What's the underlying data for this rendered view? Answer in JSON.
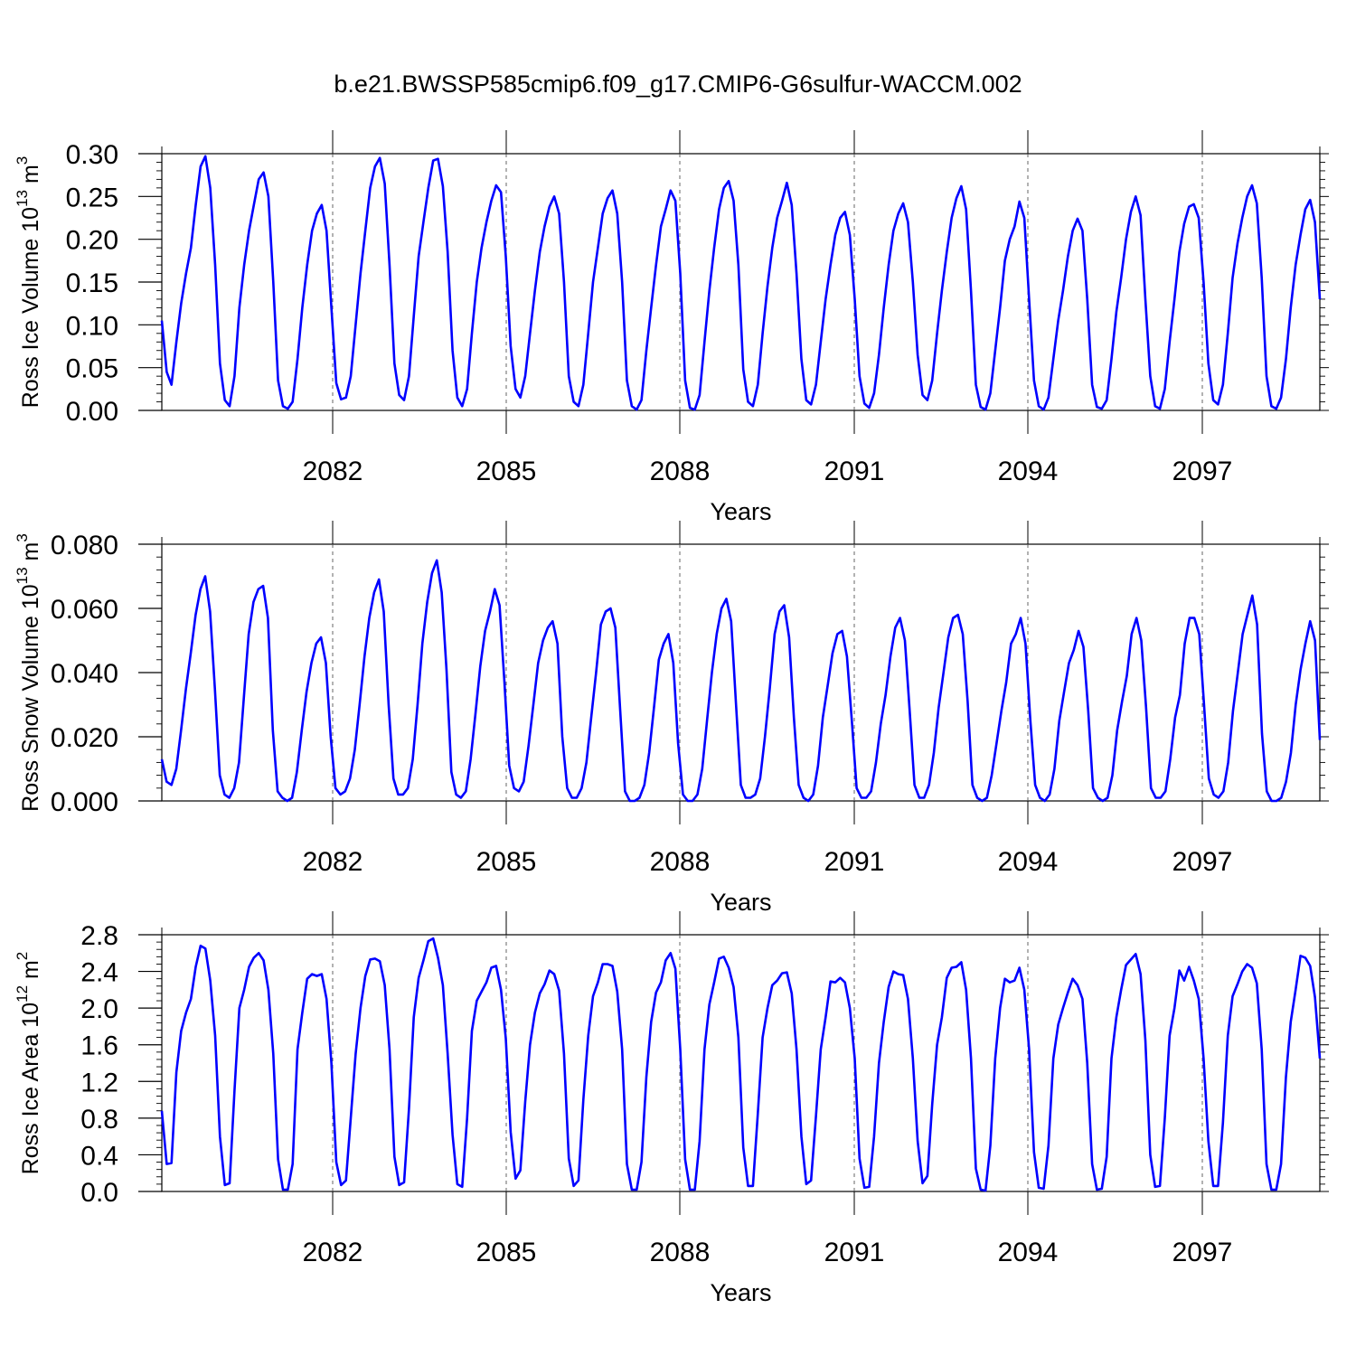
{
  "title": "b.e21.BWSSP585cmip6.f09_g17.CMIP6-G6sulfur-WACCM.002",
  "line_color": "#0000ff",
  "chart_data": [
    {
      "type": "line",
      "xlabel": "Years",
      "ylabel": "Ross Ice Volume 10",
      "ylabel_exp": "13",
      "ylabel_unit": " m",
      "ylabel_unit_exp": "3",
      "x_start": 2079,
      "x_end": 2099,
      "xticks": [
        "2082",
        "2085",
        "2088",
        "2091",
        "2094",
        "2097"
      ],
      "yticks": [
        "0.00",
        "0.05",
        "0.10",
        "0.15",
        "0.20",
        "0.25",
        "0.30"
      ],
      "ylim": [
        0,
        0.3
      ],
      "series": [
        {
          "values": [
            0.105,
            0.045,
            0.03,
            0.08,
            0.125,
            0.16,
            0.19,
            0.24,
            0.285,
            0.297,
            0.26,
            0.17,
            0.055,
            0.012,
            0.005,
            0.04,
            0.12,
            0.17,
            0.21,
            0.24,
            0.27,
            0.278,
            0.25,
            0.15,
            0.035,
            0.005,
            0.002,
            0.01,
            0.06,
            0.12,
            0.17,
            0.21,
            0.23,
            0.24,
            0.21,
            0.12,
            0.032,
            0.013,
            0.015,
            0.04,
            0.1,
            0.16,
            0.21,
            0.26,
            0.285,
            0.295,
            0.265,
            0.17,
            0.055,
            0.018,
            0.012,
            0.04,
            0.11,
            0.18,
            0.22,
            0.26,
            0.292,
            0.294,
            0.262,
            0.185,
            0.07,
            0.015,
            0.005,
            0.025,
            0.09,
            0.15,
            0.19,
            0.22,
            0.245,
            0.263,
            0.255,
            0.18,
            0.075,
            0.025,
            0.015,
            0.04,
            0.09,
            0.14,
            0.185,
            0.215,
            0.238,
            0.25,
            0.23,
            0.15,
            0.04,
            0.01,
            0.005,
            0.03,
            0.09,
            0.15,
            0.19,
            0.23,
            0.248,
            0.257,
            0.23,
            0.15,
            0.035,
            0.005,
            0.001,
            0.012,
            0.07,
            0.12,
            0.17,
            0.215,
            0.235,
            0.257,
            0.245,
            0.16,
            0.035,
            0.003,
            0.001,
            0.018,
            0.08,
            0.14,
            0.19,
            0.235,
            0.26,
            0.268,
            0.245,
            0.17,
            0.048,
            0.01,
            0.005,
            0.03,
            0.09,
            0.145,
            0.19,
            0.225,
            0.245,
            0.266,
            0.24,
            0.16,
            0.06,
            0.012,
            0.007,
            0.03,
            0.08,
            0.13,
            0.17,
            0.205,
            0.225,
            0.232,
            0.205,
            0.13,
            0.04,
            0.008,
            0.003,
            0.02,
            0.065,
            0.12,
            0.17,
            0.21,
            0.23,
            0.242,
            0.22,
            0.15,
            0.065,
            0.018,
            0.012,
            0.035,
            0.09,
            0.14,
            0.185,
            0.225,
            0.248,
            0.262,
            0.235,
            0.14,
            0.03,
            0.004,
            0.001,
            0.02,
            0.07,
            0.12,
            0.175,
            0.2,
            0.215,
            0.244,
            0.225,
            0.13,
            0.035,
            0.005,
            0.001,
            0.015,
            0.06,
            0.105,
            0.14,
            0.18,
            0.21,
            0.224,
            0.21,
            0.13,
            0.03,
            0.004,
            0.002,
            0.012,
            0.06,
            0.115,
            0.155,
            0.2,
            0.232,
            0.25,
            0.228,
            0.13,
            0.04,
            0.005,
            0.002,
            0.025,
            0.08,
            0.13,
            0.185,
            0.218,
            0.238,
            0.241,
            0.225,
            0.15,
            0.055,
            0.012,
            0.007,
            0.03,
            0.09,
            0.155,
            0.195,
            0.225,
            0.25,
            0.263,
            0.242,
            0.155,
            0.04,
            0.005,
            0.002,
            0.015,
            0.06,
            0.12,
            0.17,
            0.205,
            0.235,
            0.246,
            0.22,
            0.13
          ]
        }
      ]
    },
    {
      "type": "line",
      "xlabel": "Years",
      "ylabel": "Ross Snow Volume 10",
      "ylabel_exp": "13",
      "ylabel_unit": " m",
      "ylabel_unit_exp": "3",
      "x_start": 2079,
      "x_end": 2099,
      "xticks": [
        "2082",
        "2085",
        "2088",
        "2091",
        "2094",
        "2097"
      ],
      "yticks": [
        "0.000",
        "0.020",
        "0.040",
        "0.060",
        "0.080"
      ],
      "ylim": [
        0,
        0.08
      ],
      "series": [
        {
          "values": [
            0.013,
            0.006,
            0.005,
            0.01,
            0.022,
            0.035,
            0.046,
            0.058,
            0.066,
            0.07,
            0.059,
            0.035,
            0.008,
            0.002,
            0.001,
            0.004,
            0.012,
            0.032,
            0.052,
            0.062,
            0.066,
            0.067,
            0.057,
            0.022,
            0.003,
            0.001,
            0.0,
            0.001,
            0.009,
            0.022,
            0.034,
            0.043,
            0.049,
            0.051,
            0.043,
            0.02,
            0.004,
            0.002,
            0.003,
            0.007,
            0.016,
            0.03,
            0.045,
            0.057,
            0.065,
            0.069,
            0.059,
            0.03,
            0.007,
            0.002,
            0.002,
            0.004,
            0.013,
            0.03,
            0.049,
            0.062,
            0.071,
            0.075,
            0.065,
            0.041,
            0.009,
            0.002,
            0.001,
            0.003,
            0.013,
            0.027,
            0.042,
            0.053,
            0.059,
            0.066,
            0.061,
            0.037,
            0.011,
            0.004,
            0.003,
            0.006,
            0.017,
            0.03,
            0.043,
            0.05,
            0.054,
            0.056,
            0.049,
            0.02,
            0.004,
            0.001,
            0.001,
            0.004,
            0.012,
            0.026,
            0.04,
            0.055,
            0.059,
            0.06,
            0.054,
            0.028,
            0.003,
            0.0,
            0.0,
            0.001,
            0.005,
            0.015,
            0.029,
            0.044,
            0.049,
            0.052,
            0.043,
            0.018,
            0.002,
            0.0,
            0.0,
            0.002,
            0.01,
            0.025,
            0.04,
            0.052,
            0.06,
            0.063,
            0.056,
            0.03,
            0.005,
            0.001,
            0.001,
            0.002,
            0.007,
            0.02,
            0.035,
            0.052,
            0.059,
            0.061,
            0.051,
            0.026,
            0.005,
            0.001,
            0.0,
            0.002,
            0.011,
            0.026,
            0.036,
            0.046,
            0.052,
            0.053,
            0.045,
            0.025,
            0.004,
            0.001,
            0.001,
            0.003,
            0.012,
            0.024,
            0.033,
            0.045,
            0.054,
            0.057,
            0.05,
            0.028,
            0.005,
            0.001,
            0.001,
            0.005,
            0.015,
            0.029,
            0.04,
            0.051,
            0.057,
            0.058,
            0.052,
            0.031,
            0.005,
            0.001,
            0.0,
            0.001,
            0.008,
            0.018,
            0.028,
            0.037,
            0.049,
            0.052,
            0.057,
            0.049,
            0.025,
            0.005,
            0.001,
            0.0,
            0.002,
            0.01,
            0.025,
            0.034,
            0.043,
            0.047,
            0.053,
            0.048,
            0.028,
            0.004,
            0.001,
            0.0,
            0.001,
            0.008,
            0.022,
            0.031,
            0.039,
            0.052,
            0.057,
            0.05,
            0.029,
            0.004,
            0.001,
            0.001,
            0.003,
            0.013,
            0.026,
            0.033,
            0.049,
            0.057,
            0.057,
            0.052,
            0.03,
            0.007,
            0.002,
            0.001,
            0.003,
            0.012,
            0.028,
            0.04,
            0.052,
            0.058,
            0.064,
            0.055,
            0.021,
            0.003,
            0.0,
            0.0,
            0.001,
            0.006,
            0.015,
            0.03,
            0.041,
            0.049,
            0.056,
            0.05,
            0.019
          ]
        }
      ]
    },
    {
      "type": "line",
      "xlabel": "Years",
      "ylabel": "Ross Ice Area 10",
      "ylabel_exp": "12",
      "ylabel_unit": " m",
      "ylabel_unit_exp": "2",
      "x_start": 2079,
      "x_end": 2099,
      "xticks": [
        "2082",
        "2085",
        "2088",
        "2091",
        "2094",
        "2097"
      ],
      "yticks": [
        "0.0",
        "0.4",
        "0.8",
        "1.2",
        "1.6",
        "2.0",
        "2.4",
        "2.8"
      ],
      "ylim": [
        0,
        2.8
      ],
      "series": [
        {
          "values": [
            0.88,
            0.3,
            0.31,
            1.3,
            1.75,
            1.95,
            2.1,
            2.45,
            2.68,
            2.65,
            2.3,
            1.7,
            0.6,
            0.07,
            0.09,
            1.1,
            2.0,
            2.2,
            2.45,
            2.55,
            2.6,
            2.52,
            2.2,
            1.5,
            0.35,
            0.02,
            0.02,
            0.3,
            1.55,
            1.95,
            2.32,
            2.37,
            2.35,
            2.37,
            2.1,
            1.4,
            0.32,
            0.07,
            0.12,
            0.8,
            1.5,
            2.0,
            2.35,
            2.53,
            2.54,
            2.51,
            2.25,
            1.55,
            0.38,
            0.07,
            0.1,
            0.9,
            1.9,
            2.33,
            2.52,
            2.73,
            2.76,
            2.55,
            2.25,
            1.5,
            0.62,
            0.08,
            0.05,
            0.8,
            1.75,
            2.08,
            2.18,
            2.28,
            2.44,
            2.46,
            2.2,
            1.67,
            0.65,
            0.14,
            0.23,
            0.98,
            1.6,
            1.95,
            2.16,
            2.26,
            2.41,
            2.37,
            2.19,
            1.5,
            0.36,
            0.06,
            0.12,
            1.0,
            1.7,
            2.13,
            2.28,
            2.48,
            2.48,
            2.46,
            2.18,
            1.55,
            0.3,
            0.02,
            0.02,
            0.32,
            1.25,
            1.85,
            2.17,
            2.28,
            2.52,
            2.6,
            2.43,
            1.55,
            0.35,
            0.02,
            0.02,
            0.55,
            1.55,
            2.04,
            2.28,
            2.54,
            2.56,
            2.44,
            2.23,
            1.68,
            0.48,
            0.06,
            0.06,
            0.85,
            1.68,
            2.0,
            2.25,
            2.3,
            2.38,
            2.39,
            2.16,
            1.55,
            0.6,
            0.08,
            0.12,
            0.82,
            1.55,
            1.9,
            2.29,
            2.28,
            2.33,
            2.28,
            2.0,
            1.45,
            0.36,
            0.04,
            0.05,
            0.6,
            1.4,
            1.85,
            2.23,
            2.4,
            2.37,
            2.36,
            2.1,
            1.45,
            0.55,
            0.09,
            0.17,
            0.95,
            1.6,
            1.9,
            2.33,
            2.44,
            2.45,
            2.5,
            2.2,
            1.45,
            0.25,
            0.02,
            0.01,
            0.5,
            1.45,
            2.0,
            2.32,
            2.28,
            2.3,
            2.44,
            2.2,
            1.55,
            0.43,
            0.04,
            0.03,
            0.5,
            1.45,
            1.82,
            2.0,
            2.17,
            2.32,
            2.25,
            2.1,
            1.4,
            0.3,
            0.02,
            0.03,
            0.38,
            1.45,
            1.9,
            2.2,
            2.47,
            2.53,
            2.59,
            2.37,
            1.65,
            0.4,
            0.05,
            0.06,
            0.8,
            1.7,
            2.0,
            2.41,
            2.3,
            2.45,
            2.3,
            2.1,
            1.45,
            0.55,
            0.06,
            0.06,
            0.75,
            1.7,
            2.13,
            2.26,
            2.4,
            2.48,
            2.44,
            2.27,
            1.55,
            0.3,
            0.02,
            0.02,
            0.3,
            1.25,
            1.85,
            2.2,
            2.57,
            2.55,
            2.46,
            2.12,
            1.45
          ]
        }
      ]
    }
  ]
}
